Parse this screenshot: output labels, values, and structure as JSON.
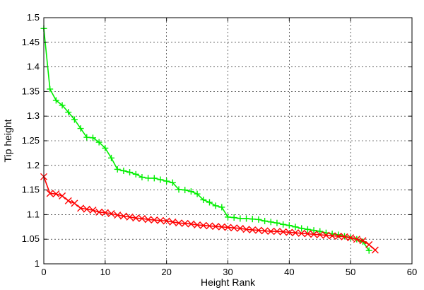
{
  "chart_data": {
    "type": "line",
    "title": "",
    "xlabel": "Height Rank",
    "ylabel": "Tip height",
    "xlim": [
      0,
      60
    ],
    "ylim": [
      1,
      1.5
    ],
    "xticks": [
      0,
      10,
      20,
      30,
      40,
      50,
      60
    ],
    "yticks": [
      1,
      1.05,
      1.1,
      1.15,
      1.2,
      1.25,
      1.3,
      1.35,
      1.4,
      1.45,
      1.5
    ],
    "xtick_labels": [
      "0",
      "10",
      "20",
      "30",
      "40",
      "50",
      "60"
    ],
    "ytick_labels": [
      "1",
      "1.05",
      "1.1",
      "1.15",
      "1.2",
      "1.25",
      "1.3",
      "1.35",
      "1.4",
      "1.45",
      "1.5"
    ],
    "grid": true,
    "legend": "none",
    "series": [
      {
        "color": "#00ee00",
        "marker": "plus",
        "x": [
          0,
          1,
          2,
          3,
          4,
          5,
          6,
          7,
          8,
          9,
          10,
          11,
          12,
          13,
          14,
          15,
          16,
          17,
          18,
          19,
          20,
          21,
          22,
          23,
          24,
          25,
          26,
          27,
          28,
          29,
          30,
          31,
          32,
          33,
          34,
          35,
          36,
          37,
          38,
          39,
          40,
          41,
          42,
          43,
          44,
          45,
          46,
          47,
          48,
          49,
          50,
          51,
          52,
          53
        ],
        "y": [
          1.478,
          1.355,
          1.332,
          1.322,
          1.308,
          1.293,
          1.275,
          1.257,
          1.256,
          1.247,
          1.235,
          1.215,
          1.192,
          1.189,
          1.186,
          1.182,
          1.176,
          1.174,
          1.174,
          1.171,
          1.168,
          1.165,
          1.151,
          1.15,
          1.147,
          1.142,
          1.13,
          1.125,
          1.118,
          1.115,
          1.095,
          1.094,
          1.092,
          1.092,
          1.091,
          1.09,
          1.087,
          1.085,
          1.083,
          1.08,
          1.078,
          1.075,
          1.072,
          1.07,
          1.068,
          1.066,
          1.063,
          1.061,
          1.059,
          1.056,
          1.053,
          1.05,
          1.045,
          1.027
        ]
      },
      {
        "color": "#ff0000",
        "marker": "x",
        "x": [
          0,
          1,
          2,
          3,
          4,
          5,
          6,
          7,
          8,
          9,
          10,
          11,
          12,
          13,
          14,
          15,
          16,
          17,
          18,
          19,
          20,
          21,
          22,
          23,
          24,
          25,
          26,
          27,
          28,
          29,
          30,
          31,
          32,
          33,
          34,
          35,
          36,
          37,
          38,
          39,
          40,
          41,
          42,
          43,
          44,
          45,
          46,
          47,
          48,
          49,
          50,
          51,
          52,
          53,
          54
        ],
        "y": [
          1.177,
          1.143,
          1.142,
          1.138,
          1.128,
          1.123,
          1.113,
          1.111,
          1.109,
          1.105,
          1.104,
          1.102,
          1.099,
          1.097,
          1.095,
          1.093,
          1.092,
          1.09,
          1.089,
          1.088,
          1.087,
          1.085,
          1.083,
          1.082,
          1.081,
          1.079,
          1.078,
          1.077,
          1.076,
          1.075,
          1.074,
          1.073,
          1.072,
          1.07,
          1.069,
          1.068,
          1.067,
          1.066,
          1.066,
          1.065,
          1.064,
          1.063,
          1.062,
          1.061,
          1.06,
          1.059,
          1.058,
          1.057,
          1.056,
          1.055,
          1.053,
          1.05,
          1.047,
          1.039,
          1.028
        ]
      }
    ]
  }
}
